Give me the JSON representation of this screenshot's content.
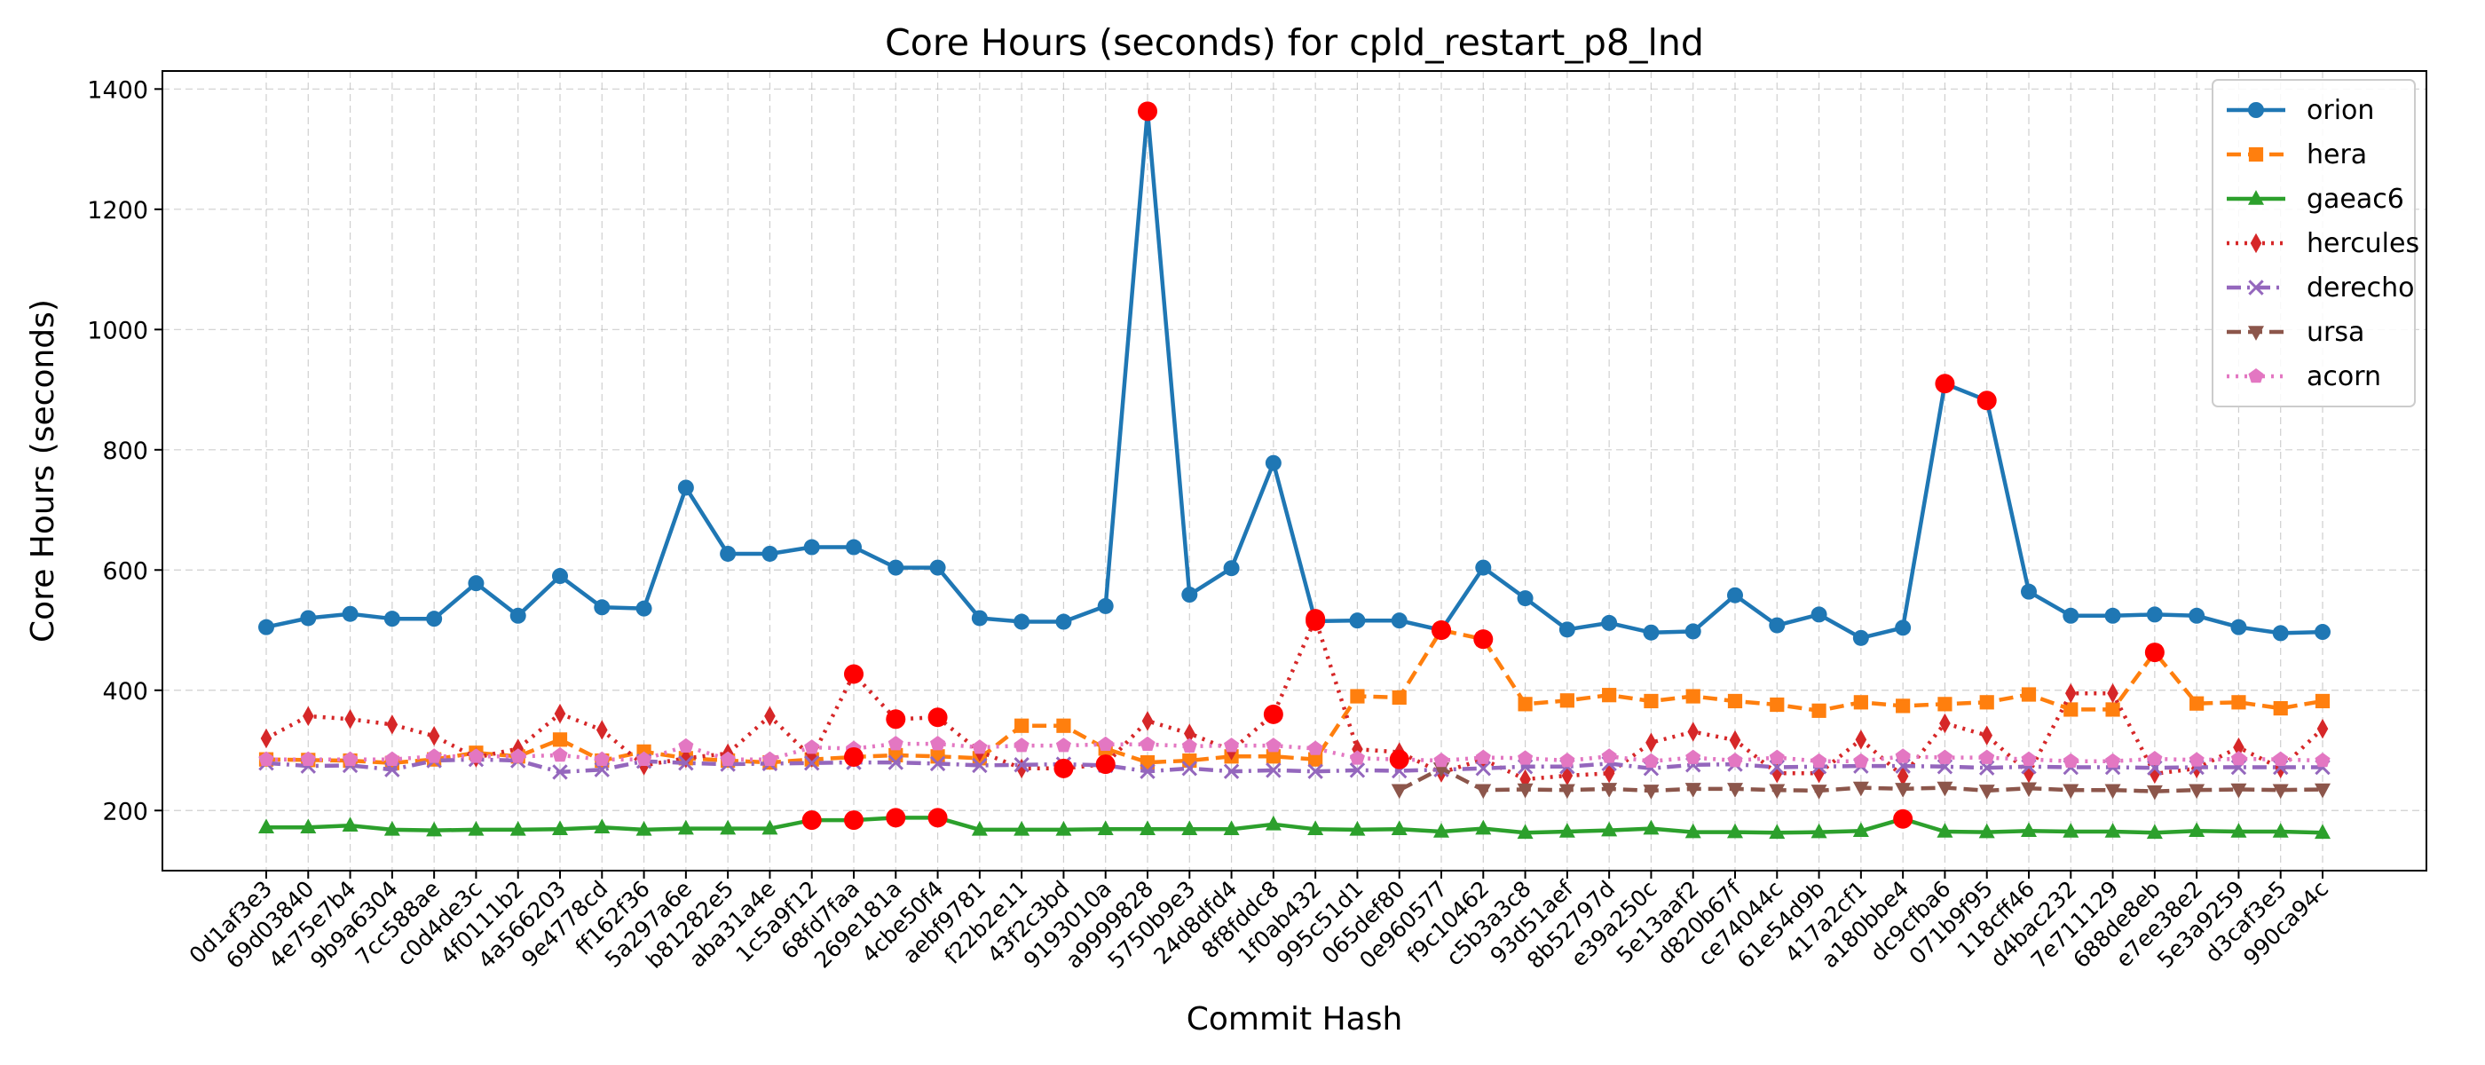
{
  "chart_data": {
    "type": "line",
    "title": "Core Hours (seconds) for cpld_restart_p8_lnd",
    "xlabel": "Commit Hash",
    "ylabel": "Core Hours (seconds)",
    "ylim": [
      100,
      1430
    ],
    "yticks": [
      200,
      400,
      600,
      800,
      1000,
      1200,
      1400
    ],
    "grid": true,
    "legend_position": "top-right",
    "highlight_color": "#ff0000",
    "categories": [
      "0d1af3e3",
      "69d03840",
      "4e75e7b4",
      "9b9a6304",
      "7cc588ae",
      "c0d4de3c",
      "4f0111b2",
      "4a566203",
      "9e4778cd",
      "ff162f36",
      "5a297a6e",
      "b81282e5",
      "aba31a4e",
      "1c5a9f12",
      "68fd7faa",
      "269e181a",
      "4cbe50f4",
      "aebf9781",
      "f22b2e11",
      "43f2c3bd",
      "9193010a",
      "a9999828",
      "5750b9e3",
      "24d8dfd4",
      "8f8fddc8",
      "1f0ab432",
      "995c51d1",
      "065def80",
      "0e960577",
      "f9c10462",
      "c5b3a3c8",
      "93d51aef",
      "8b52797d",
      "e39a250c",
      "5e13aaf2",
      "d820b67f",
      "ce74044c",
      "61e54d9b",
      "417a2cf1",
      "a180bbe4",
      "dc9cfba6",
      "071b9f95",
      "118cff46",
      "d4bac232",
      "7e711129",
      "688de8eb",
      "e7ee38e2",
      "5e3a9259",
      "d3caf3e5",
      "990ca94c"
    ],
    "series": [
      {
        "name": "orion",
        "color": "#1f77b4",
        "marker": "circle",
        "dash": "solid",
        "values": [
          505,
          520,
          527,
          519,
          519,
          578,
          524,
          590,
          538,
          536,
          737,
          627,
          627,
          638,
          638,
          604,
          604,
          520,
          514,
          514,
          540,
          1363,
          559,
          603,
          778,
          515,
          516,
          516,
          500,
          604,
          553,
          501,
          512,
          496,
          498,
          558,
          508,
          526,
          487,
          504,
          910,
          882,
          564,
          524,
          524,
          526,
          524,
          505,
          495,
          497
        ],
        "highlights": [
          21,
          25,
          28,
          40,
          41
        ]
      },
      {
        "name": "hera",
        "color": "#ff7f0e",
        "marker": "square",
        "dash": "dashed",
        "values": [
          285,
          284,
          283,
          279,
          285,
          296,
          290,
          318,
          283,
          298,
          287,
          283,
          280,
          285,
          289,
          292,
          290,
          287,
          341,
          341,
          303,
          280,
          283,
          290,
          290,
          285,
          390,
          388,
          500,
          485,
          377,
          383,
          392,
          382,
          390,
          382,
          376,
          366,
          380,
          374,
          377,
          380,
          393,
          368,
          368,
          463,
          378,
          380,
          370,
          382
        ],
        "highlights": [
          14,
          28,
          29,
          45
        ]
      },
      {
        "name": "gaeac6",
        "color": "#2ca02c",
        "marker": "triangle",
        "dash": "solid",
        "values": [
          172,
          172,
          175,
          168,
          167,
          168,
          168,
          169,
          172,
          168,
          170,
          170,
          170,
          184,
          184,
          188,
          188,
          168,
          168,
          168,
          169,
          169,
          169,
          169,
          177,
          169,
          168,
          169,
          165,
          170,
          163,
          165,
          167,
          170,
          164,
          164,
          163,
          164,
          166,
          186,
          165,
          164,
          166,
          165,
          165,
          163,
          166,
          165,
          165,
          163
        ],
        "highlights": [
          13,
          14,
          15,
          16,
          39
        ]
      },
      {
        "name": "hercules",
        "color": "#d62728",
        "marker": "diamond",
        "dash": "dotted",
        "values": [
          320,
          357,
          352,
          343,
          324,
          288,
          303,
          361,
          334,
          275,
          287,
          295,
          357,
          288,
          427,
          352,
          355,
          298,
          270,
          270,
          277,
          349,
          328,
          300,
          360,
          519,
          302,
          297,
          263,
          285,
          252,
          258,
          262,
          313,
          331,
          317,
          262,
          262,
          318,
          257,
          345,
          325,
          262,
          395,
          395,
          261,
          270,
          305,
          270,
          336
        ],
        "highlights": [
          14,
          15,
          16,
          19,
          20,
          24,
          25
        ]
      },
      {
        "name": "derecho",
        "color": "#9467bd",
        "marker": "x",
        "dash": "dashdot",
        "values": [
          279,
          274,
          275,
          268,
          283,
          285,
          283,
          264,
          268,
          282,
          279,
          277,
          278,
          279,
          280,
          280,
          278,
          275,
          276,
          277,
          275,
          265,
          270,
          265,
          267,
          265,
          267,
          266,
          268,
          270,
          273,
          273,
          278,
          270,
          276,
          277,
          272,
          273,
          274,
          274,
          273,
          271,
          273,
          272,
          272,
          271,
          272,
          272,
          272,
          272
        ],
        "highlights": []
      },
      {
        "name": "ursa",
        "color": "#8c564b",
        "marker": "triangle-down",
        "dash": "dashed",
        "values": [
          null,
          null,
          null,
          null,
          null,
          null,
          null,
          null,
          null,
          null,
          null,
          null,
          null,
          null,
          null,
          null,
          null,
          null,
          null,
          null,
          null,
          null,
          null,
          null,
          null,
          null,
          null,
          234,
          270,
          234,
          235,
          234,
          236,
          233,
          236,
          236,
          234,
          233,
          238,
          236,
          238,
          233,
          237,
          234,
          234,
          232,
          234,
          235,
          234,
          235
        ],
        "highlights": []
      },
      {
        "name": "acorn",
        "color": "#e377c2",
        "marker": "pentagon",
        "dash": "dotted",
        "values": [
          285,
          285,
          285,
          285,
          290,
          290,
          290,
          292,
          285,
          285,
          307,
          285,
          285,
          305,
          303,
          311,
          311,
          305,
          308,
          308,
          310,
          310,
          307,
          308,
          308,
          303,
          287,
          285,
          283,
          288,
          287,
          283,
          290,
          282,
          288,
          283,
          288,
          282,
          282,
          290,
          288,
          288,
          285,
          282,
          282,
          286,
          284,
          286,
          285,
          283
        ],
        "highlights": [
          27
        ]
      }
    ]
  }
}
